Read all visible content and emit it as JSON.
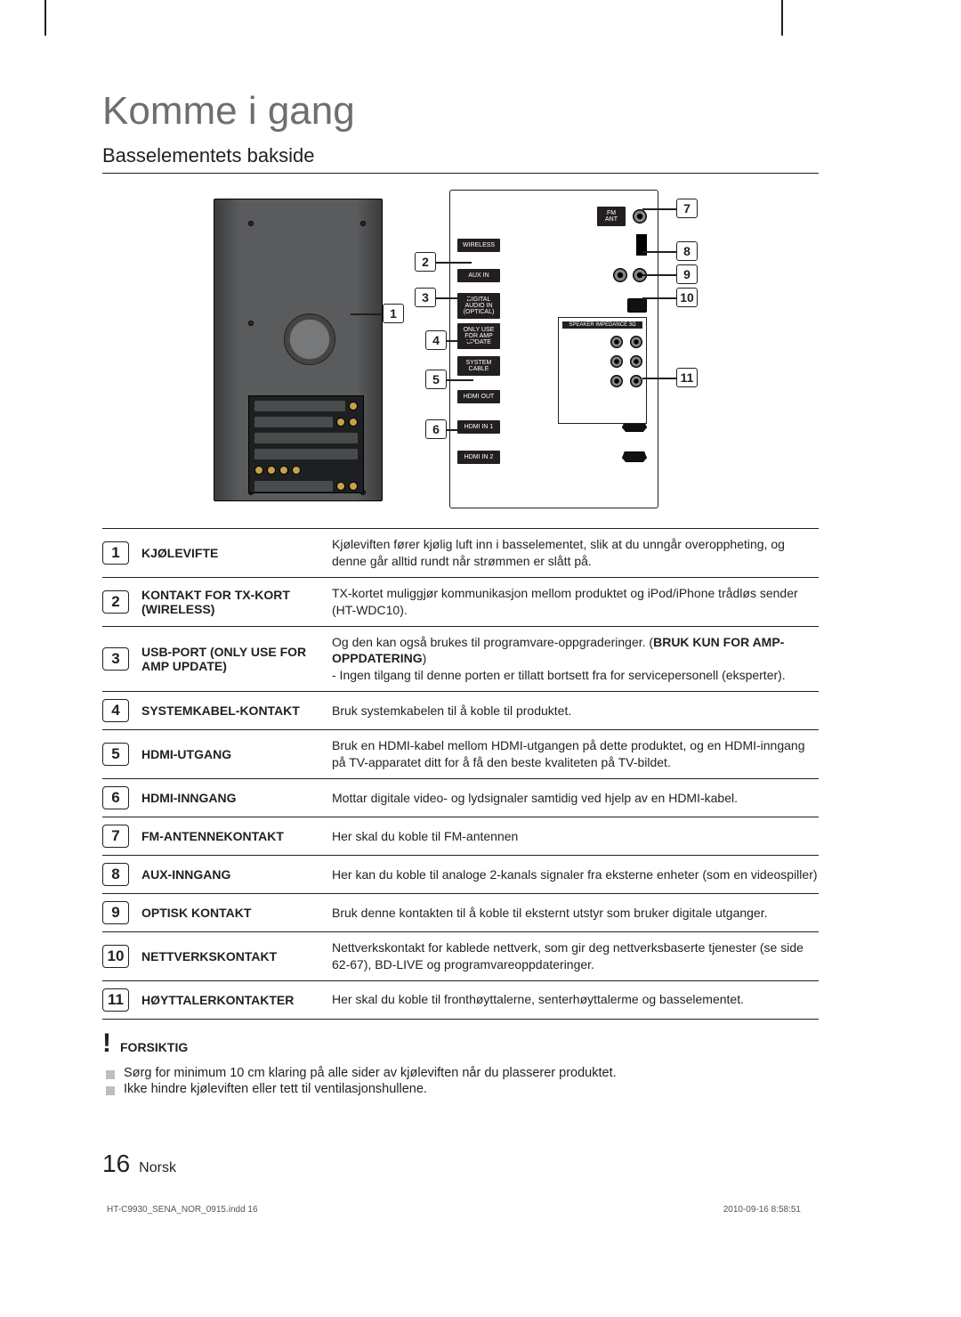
{
  "chapter_title": "Komme i gang",
  "section_title": "Basselementets bakside",
  "callouts": {
    "n1": "1",
    "n2": "2",
    "n3": "3",
    "n4": "4",
    "n5": "5",
    "n6": "6",
    "n7": "7",
    "n8": "8",
    "n9": "9",
    "n10": "10",
    "n11": "11"
  },
  "rows": [
    {
      "num": "1",
      "name": "KJØLEVIFTE",
      "desc": "Kjøleviften fører kjølig luft inn i basselementet, slik at du unngår overoppheting, og denne går alltid rundt når strømmen er slått på."
    },
    {
      "num": "2",
      "name": "KONTAKT FOR TX-KORT (WIRELESS)",
      "desc": "TX-kortet muliggjør kommunikasjon mellom produktet og iPod/iPhone trådløs sender (HT-WDC10)."
    },
    {
      "num": "3",
      "name": "USB-PORT (ONLY USE FOR AMP UPDATE)",
      "desc": "Og den kan også brukes til programvare-oppgraderinger. (<b>BRUK KUN FOR AMP-OPPDATERING</b>)\n- Ingen tilgang til denne porten er tillatt bortsett fra for servicepersonell (eksperter)."
    },
    {
      "num": "4",
      "name": "SYSTEMKABEL-KONTAKT",
      "desc": "Bruk systemkabelen til å koble til produktet."
    },
    {
      "num": "5",
      "name": "HDMI-UTGANG",
      "desc": "Bruk en HDMI-kabel mellom HDMI-utgangen på dette produktet, og en HDMI-inngang på TV-apparatet ditt for å få den beste kvaliteten på TV-bildet."
    },
    {
      "num": "6",
      "name": "HDMI-INNGANG",
      "desc": "Mottar digitale video- og lydsignaler samtidig ved hjelp av en HDMI-kabel."
    },
    {
      "num": "7",
      "name": "FM-ANTENNEKONTAKT",
      "desc": "Her skal du koble til FM-antennen"
    },
    {
      "num": "8",
      "name": "AUX-INNGANG",
      "desc": "Her kan du koble til analoge 2-kanals signaler fra eksterne enheter (som en videospiller)"
    },
    {
      "num": "9",
      "name": "OPTISK KONTAKT",
      "desc": "Bruk denne kontakten til å koble til eksternt utstyr som bruker digitale utganger."
    },
    {
      "num": "10",
      "name": "NETTVERKSKONTAKT",
      "desc": "Nettverkskontakt for kablede nettverk, som gir deg nettverksbaserte tjenester (se side 62-67), BD-LIVE og programvareoppdateringer."
    },
    {
      "num": "11",
      "name": "HØYTTALERKONTAKTER",
      "desc": "Her skal du koble til fronthøyttalerne, senterhøyttalerme og basselementet."
    }
  ],
  "caution": {
    "head": "FORSIKTIG",
    "items": [
      "Sørg for minimum 10 cm klaring på alle sider av kjøleviften når du plasserer produktet.",
      "Ikke hindre kjøleviften eller tett til ventilasjonshullene."
    ]
  },
  "footer": {
    "page": "16",
    "lang": "Norsk"
  },
  "meta": {
    "file": "HT-C9930_SENA_NOR_0915.indd   16",
    "ts": "2010-09-16   8:58:51"
  },
  "colors": {
    "text": "#231f20",
    "chapter": "#6d6e71",
    "bullet": "#bdbec0"
  }
}
